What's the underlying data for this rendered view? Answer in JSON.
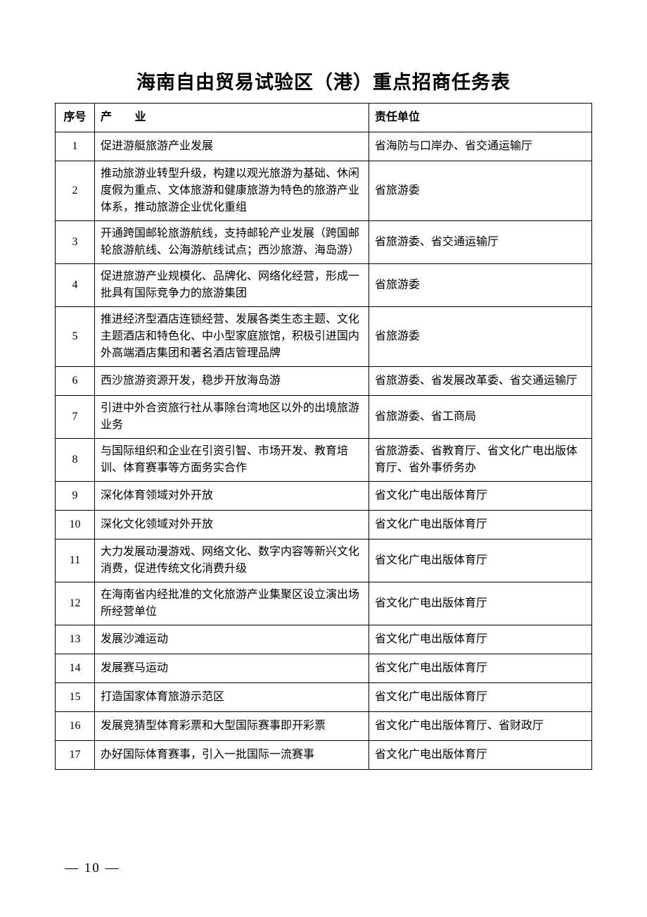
{
  "title": "海南自由贸易试验区（港）重点招商任务表",
  "headers": {
    "seq": "序号",
    "industry": "产 业",
    "unit": "责任单位"
  },
  "rows": [
    {
      "seq": "1",
      "industry": "促进游艇旅游产业发展",
      "unit": "省海防与口岸办、省交通运输厅"
    },
    {
      "seq": "2",
      "industry": "推动旅游业转型升级，构建以观光旅游为基础、休闲度假为重点、文体旅游和健康旅游为特色的旅游产业体系，推动旅游企业优化重组",
      "unit": "省旅游委"
    },
    {
      "seq": "3",
      "industry": "开通跨国邮轮旅游航线，支持邮轮产业发展（跨国邮轮旅游航线、公海游航线试点；西沙旅游、海岛游）",
      "unit": "省旅游委、省交通运输厅"
    },
    {
      "seq": "4",
      "industry": "促进旅游产业规模化、品牌化、网络化经营，形成一批具有国际竞争力的旅游集团",
      "unit": "省旅游委"
    },
    {
      "seq": "5",
      "industry": "推进经济型酒店连锁经营、发展各类生态主题、文化主题酒店和特色化、中小型家庭旅馆，积极引进国内外高端酒店集团和著名酒店管理品牌",
      "unit": "省旅游委"
    },
    {
      "seq": "6",
      "industry": "西沙旅游资源开发，稳步开放海岛游",
      "unit": "省旅游委、省发展改革委、省交通运输厅"
    },
    {
      "seq": "7",
      "industry": "引进中外合资旅行社从事除台湾地区以外的出境旅游业务",
      "unit": "省旅游委、省工商局"
    },
    {
      "seq": "8",
      "industry": "与国际组织和企业在引资引智、市场开发、教育培训、体育赛事等方面务实合作",
      "unit": "省旅游委、省教育厅、省文化广电出版体育厅、省外事侨务办"
    },
    {
      "seq": "9",
      "industry": "深化体育领域对外开放",
      "unit": "省文化广电出版体育厅"
    },
    {
      "seq": "10",
      "industry": "深化文化领域对外开放",
      "unit": "省文化广电出版体育厅"
    },
    {
      "seq": "11",
      "industry": "大力发展动漫游戏、网络文化、数字内容等新兴文化消费，促进传统文化消费升级",
      "unit": "省文化广电出版体育厅"
    },
    {
      "seq": "12",
      "industry": "在海南省内经批准的文化旅游产业集聚区设立演出场所经营单位",
      "unit": "省文化广电出版体育厅"
    },
    {
      "seq": "13",
      "industry": "发展沙滩运动",
      "unit": "省文化广电出版体育厅"
    },
    {
      "seq": "14",
      "industry": "发展赛马运动",
      "unit": "省文化广电出版体育厅"
    },
    {
      "seq": "15",
      "industry": "打造国家体育旅游示范区",
      "unit": "省文化广电出版体育厅"
    },
    {
      "seq": "16",
      "industry": "发展竞猜型体育彩票和大型国际赛事即开彩票",
      "unit": "省文化广电出版体育厅、省财政厅"
    },
    {
      "seq": "17",
      "industry": "办好国际体育赛事，引入一批国际一流赛事",
      "unit": "省文化广电出版体育厅"
    }
  ],
  "pageNumber": "— 10 —"
}
